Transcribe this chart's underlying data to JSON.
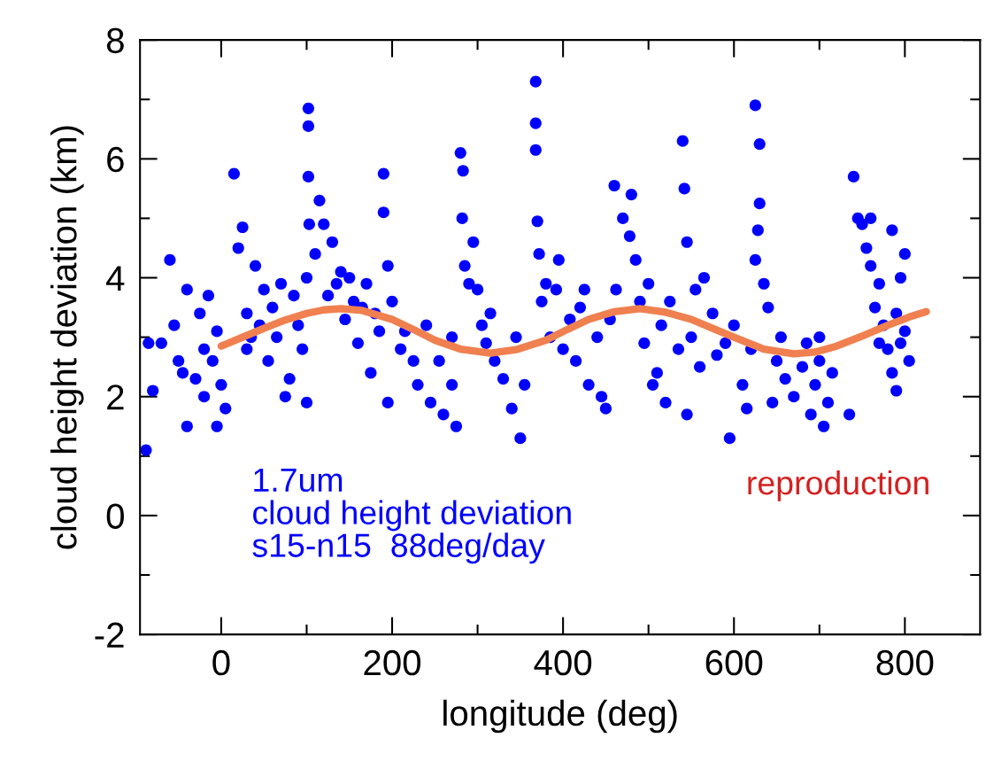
{
  "chart_data": {
    "type": "scatter",
    "xlabel": "longitude (deg)",
    "ylabel": "cloud height deviation (km)",
    "xlim": [
      -95,
      888
    ],
    "ylim": [
      -2,
      8
    ],
    "xticks": [
      0,
      {
        "value": 100,
        "label": null
      },
      200,
      {
        "value": 300,
        "label": null
      },
      400,
      {
        "value": 500,
        "label": null
      },
      600,
      {
        "value": 700,
        "label": null
      },
      800
    ],
    "yticks": [
      -2,
      {
        "value": -1,
        "label": null
      },
      0,
      {
        "value": 1,
        "label": null
      },
      2,
      {
        "value": 3,
        "label": null
      },
      4,
      {
        "value": 5,
        "label": null
      },
      6,
      {
        "value": 7,
        "label": null
      },
      8
    ],
    "grid": false,
    "legend": false,
    "annotations": [
      "1.7um",
      "cloud height deviation",
      "s15-n15  88deg/day"
    ],
    "series": [
      {
        "color": "#0000ff",
        "marker": "circle",
        "x": [
          -88,
          -85,
          -80,
          -70,
          -60,
          -55,
          -50,
          -40,
          -40,
          -30,
          -25,
          -20,
          -15,
          -10,
          -5,
          0,
          -5,
          5,
          -20,
          -45,
          15,
          20,
          25,
          30,
          35,
          40,
          50,
          55,
          60,
          70,
          75,
          80,
          90,
          95,
          100,
          100,
          85,
          65,
          45,
          30,
          102,
          102,
          102,
          103,
          110,
          115,
          120,
          125,
          130,
          140,
          145,
          150,
          155,
          160,
          170,
          175,
          180,
          190,
          190,
          195,
          195,
          185,
          165,
          135,
          200,
          210,
          215,
          225,
          230,
          240,
          245,
          255,
          260,
          270,
          275,
          270,
          280,
          283,
          282,
          285,
          290,
          295,
          300,
          305,
          310,
          320,
          330,
          340,
          350,
          355,
          345,
          315,
          368,
          368,
          368,
          370,
          372,
          375,
          380,
          385,
          392,
          400,
          408,
          415,
          420,
          430,
          440,
          445,
          455,
          450,
          460,
          462,
          395,
          425,
          470,
          480,
          478,
          485,
          490,
          495,
          500,
          510,
          515,
          520,
          525,
          535,
          540,
          542,
          545,
          550,
          545,
          555,
          560,
          505,
          565,
          575,
          580,
          590,
          595,
          600,
          610,
          615,
          620,
          625,
          630,
          630,
          628,
          625,
          635,
          640,
          650,
          655,
          660,
          645,
          670,
          680,
          690,
          695,
          700,
          705,
          710,
          700,
          685,
          715,
          735,
          740,
          745,
          750,
          755,
          760,
          765,
          770,
          775,
          780,
          785,
          790,
          795,
          800,
          800,
          805,
          790,
          770,
          760,
          785,
          795
        ],
        "values": [
          1.1,
          2.9,
          2.1,
          2.9,
          4.3,
          3.2,
          2.6,
          1.5,
          3.8,
          2.3,
          3.4,
          2.0,
          3.7,
          2.6,
          1.5,
          2.2,
          3.1,
          1.8,
          2.8,
          2.4,
          5.75,
          4.5,
          4.85,
          3.4,
          3.0,
          4.2,
          3.8,
          2.6,
          3.5,
          3.9,
          2.0,
          2.3,
          3.2,
          2.8,
          1.9,
          4.0,
          3.7,
          3.0,
          3.2,
          2.8,
          6.85,
          6.55,
          5.7,
          4.9,
          4.4,
          5.3,
          4.9,
          3.7,
          4.6,
          4.1,
          3.3,
          4.0,
          3.6,
          2.9,
          3.9,
          2.4,
          3.4,
          5.75,
          5.1,
          1.9,
          4.2,
          3.1,
          3.5,
          3.9,
          3.6,
          2.8,
          3.1,
          2.6,
          2.2,
          3.2,
          1.9,
          2.6,
          1.7,
          2.2,
          1.5,
          3.0,
          6.1,
          5.8,
          5.0,
          4.2,
          3.9,
          4.6,
          3.8,
          3.2,
          2.9,
          2.6,
          2.3,
          1.8,
          1.3,
          2.2,
          3.0,
          3.4,
          7.3,
          6.6,
          6.15,
          4.95,
          4.4,
          3.6,
          3.9,
          3.0,
          3.8,
          2.8,
          3.3,
          2.6,
          3.5,
          2.2,
          3.0,
          2.0,
          3.3,
          1.8,
          5.55,
          3.8,
          4.3,
          3.8,
          5.0,
          5.4,
          4.7,
          4.3,
          3.6,
          2.9,
          3.9,
          2.4,
          3.2,
          1.9,
          3.6,
          2.8,
          6.3,
          5.5,
          4.6,
          3.0,
          1.7,
          3.8,
          2.5,
          2.2,
          4.0,
          3.4,
          2.7,
          2.9,
          1.3,
          3.2,
          2.2,
          1.8,
          2.8,
          6.9,
          6.25,
          5.25,
          4.8,
          4.3,
          3.9,
          3.5,
          2.6,
          3.0,
          2.3,
          1.9,
          2.0,
          2.5,
          1.7,
          2.2,
          3.0,
          1.5,
          1.9,
          2.6,
          2.9,
          2.4,
          1.7,
          5.7,
          5.0,
          4.9,
          4.5,
          4.2,
          3.5,
          3.9,
          3.2,
          2.8,
          2.4,
          3.4,
          4.0,
          4.4,
          3.1,
          2.6,
          2.1,
          2.9,
          5.0,
          4.8,
          2.9
        ]
      },
      {
        "type": "line",
        "name": "reproduction",
        "color": "#f08050",
        "x": [
          0,
          25,
          50,
          75,
          100,
          120,
          140,
          165,
          200,
          225,
          250,
          280,
          315,
          345,
          380,
          405,
          430,
          460,
          490,
          520,
          550,
          575,
          600,
          635,
          670,
          695,
          720,
          750,
          780,
          805,
          825
        ],
        "values": [
          2.85,
          3.0,
          3.15,
          3.29,
          3.4,
          3.46,
          3.48,
          3.45,
          3.3,
          3.13,
          2.95,
          2.8,
          2.73,
          2.79,
          2.95,
          3.13,
          3.3,
          3.43,
          3.48,
          3.42,
          3.3,
          3.15,
          3.0,
          2.8,
          2.72,
          2.75,
          2.85,
          3.02,
          3.2,
          3.34,
          3.43
        ]
      }
    ]
  }
}
